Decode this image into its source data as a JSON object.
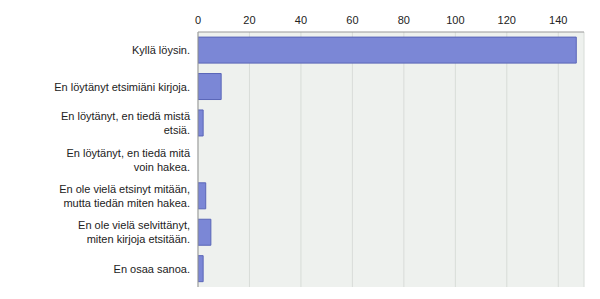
{
  "chart_data": {
    "type": "bar",
    "orientation": "horizontal",
    "categories": [
      "Kyllä löysin.",
      "En löytänyt etsimiäni kirjoja.",
      "En löytänyt, en tiedä mistä etsiä.",
      "En löytänyt, en tiedä mitä voin hakea.",
      "En ole vielä etsinyt mitään, mutta tiedän miten hakea.",
      "En ole vielä selvittänyt, miten kirjoja etsitään.",
      "En osaa sanoa."
    ],
    "values": [
      147,
      9,
      2,
      0,
      3,
      5,
      2
    ],
    "color": "#7b87d6",
    "xlim": [
      0,
      150
    ],
    "xticks": [
      0,
      20,
      40,
      60,
      80,
      100,
      120,
      140
    ],
    "grid": true
  }
}
